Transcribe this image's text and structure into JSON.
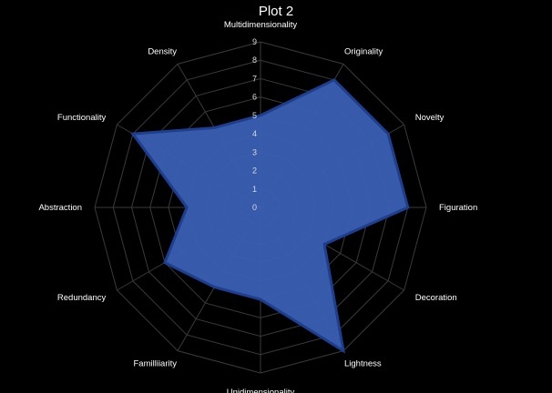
{
  "chart_data": {
    "type": "radar",
    "title": "Plot 2",
    "categories": [
      "Multidimensionality",
      "Originality",
      "Novelty",
      "Figuration",
      "Decoration",
      "Lightness",
      "Unidimensionality",
      "Familliiarity",
      "Redundancy",
      "Abstraction",
      "Functionality",
      "Density"
    ],
    "series": [
      {
        "values": [
          5,
          8,
          8,
          8,
          4,
          9,
          5,
          5,
          6,
          4,
          8,
          5
        ]
      }
    ],
    "rlim": [
      0,
      9
    ],
    "ticks": [
      0,
      1,
      2,
      3,
      4,
      5,
      6,
      7,
      8,
      9
    ],
    "grid": true,
    "legend": "none",
    "colors": {
      "background": "#000000",
      "grid": "#3a3a3a",
      "fill": "#3a5fb4",
      "stroke": "#1e3f8f",
      "text": "#ffffff",
      "tick_text": "#d9d9d9"
    }
  }
}
